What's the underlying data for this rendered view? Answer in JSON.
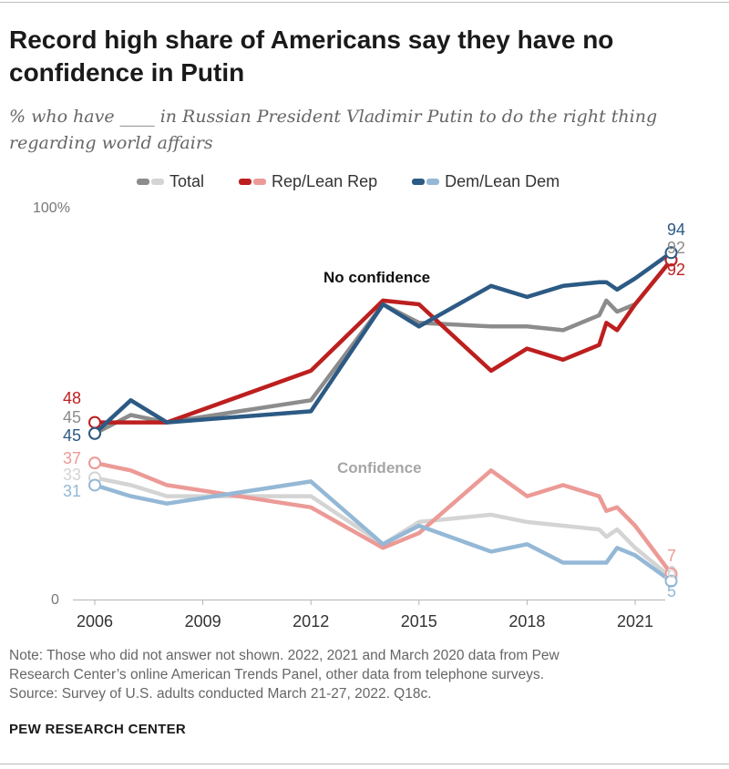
{
  "title": "Record high share of Americans say they have no confidence in Putin",
  "subtitle_line1": "% who have ____ in Russian President Vladimir Putin to do the right thing",
  "subtitle_line2": "regarding world affairs",
  "note_lines": [
    "Note: Those who did not answer not shown. 2022, 2021 and March 2020 data from Pew",
    "Research Center’s online American Trends Panel, other data from telephone surveys.",
    "Source: Survey of U.S. adults conducted March 21-27, 2022. Q18c."
  ],
  "source_org": "PEW RESEARCH CENTER",
  "colors": {
    "total_dark": "#8c8c8c",
    "total_light": "#d4d4d4",
    "rep_dark": "#bd1f1f",
    "rep_light": "#ec9a96",
    "dem_dark": "#2c5a84",
    "dem_light": "#94b8d6"
  },
  "chart_data": {
    "type": "line",
    "y_axis_labels": [
      "100%",
      "0"
    ],
    "ylim": [
      0,
      100
    ],
    "x_tick_labels": [
      "2006",
      "2009",
      "2012",
      "2015",
      "2018",
      "2021"
    ],
    "x_ticks": [
      2006,
      2009,
      2012,
      2015,
      2018,
      2021
    ],
    "xlim": [
      2006,
      2022
    ],
    "legend": [
      "Total",
      "Rep/Lean Rep",
      "Dem/Lean Dem"
    ],
    "group_labels": [
      "No confidence",
      "Confidence"
    ],
    "series": [
      {
        "name": "Total",
        "group": "No confidence",
        "x": [
          2006,
          2007,
          2008,
          2012,
          2014,
          2015,
          2017,
          2018,
          2019,
          2020,
          2020.2,
          2020.5,
          2021,
          2022
        ],
        "values": [
          45,
          50,
          48,
          54,
          80,
          75,
          74,
          74,
          73,
          77,
          81,
          78,
          80,
          92
        ]
      },
      {
        "name": "Rep/Lean Rep",
        "group": "No confidence",
        "x": [
          2006,
          2007,
          2008,
          2012,
          2014,
          2015,
          2017,
          2018,
          2019,
          2020,
          2020.2,
          2020.5,
          2021,
          2022
        ],
        "values": [
          48,
          48,
          48,
          62,
          81,
          80,
          62,
          68,
          65,
          69,
          75,
          73,
          80,
          92
        ]
      },
      {
        "name": "Dem/Lean Dem",
        "group": "No confidence",
        "x": [
          2006,
          2007,
          2008,
          2012,
          2014,
          2015,
          2017,
          2018,
          2019,
          2020,
          2020.2,
          2020.5,
          2021,
          2022
        ],
        "values": [
          45,
          54,
          48,
          51,
          80,
          74,
          85,
          82,
          85,
          86,
          86,
          84,
          87,
          94
        ]
      },
      {
        "name": "Total",
        "group": "Confidence",
        "x": [
          2006,
          2007,
          2008,
          2012,
          2014,
          2015,
          2017,
          2018,
          2019,
          2020,
          2020.2,
          2020.5,
          2021,
          2022
        ],
        "values": [
          33,
          31,
          28,
          28,
          15,
          21,
          23,
          21,
          20,
          19,
          17,
          19,
          14,
          6
        ]
      },
      {
        "name": "Rep/Lean Rep",
        "group": "Confidence",
        "x": [
          2006,
          2007,
          2008,
          2012,
          2014,
          2015,
          2017,
          2018,
          2019,
          2020,
          2020.2,
          2020.5,
          2021,
          2022
        ],
        "values": [
          37,
          35,
          31,
          25,
          14,
          18,
          35,
          28,
          31,
          28,
          24,
          25,
          20,
          7
        ]
      },
      {
        "name": "Dem/Lean Dem",
        "group": "Confidence",
        "x": [
          2006,
          2007,
          2008,
          2012,
          2014,
          2015,
          2017,
          2018,
          2019,
          2020,
          2020.2,
          2020.5,
          2021,
          2022
        ],
        "values": [
          31,
          28,
          26,
          32,
          15,
          20,
          13,
          15,
          10,
          10,
          10,
          14,
          12,
          5
        ]
      }
    ],
    "start_labels": [
      {
        "series": "Rep/Lean Rep",
        "group": "No confidence",
        "value": "48"
      },
      {
        "series": "Total",
        "group": "No confidence",
        "value": "45"
      },
      {
        "series": "Dem/Lean Dem",
        "group": "No confidence",
        "value": "45"
      },
      {
        "series": "Rep/Lean Rep",
        "group": "Confidence",
        "value": "37"
      },
      {
        "series": "Total",
        "group": "Confidence",
        "value": "33"
      },
      {
        "series": "Dem/Lean Dem",
        "group": "Confidence",
        "value": "31"
      }
    ],
    "end_labels": [
      {
        "series": "Dem/Lean Dem",
        "group": "No confidence",
        "value": "94"
      },
      {
        "series": "Total",
        "group": "No confidence",
        "value": "92"
      },
      {
        "series": "Rep/Lean Rep",
        "group": "No confidence",
        "value": "92"
      },
      {
        "series": "Rep/Lean Rep",
        "group": "Confidence",
        "value": "7"
      },
      {
        "series": "Total",
        "group": "Confidence",
        "value": "6"
      },
      {
        "series": "Dem/Lean Dem",
        "group": "Confidence",
        "value": "5"
      }
    ]
  }
}
